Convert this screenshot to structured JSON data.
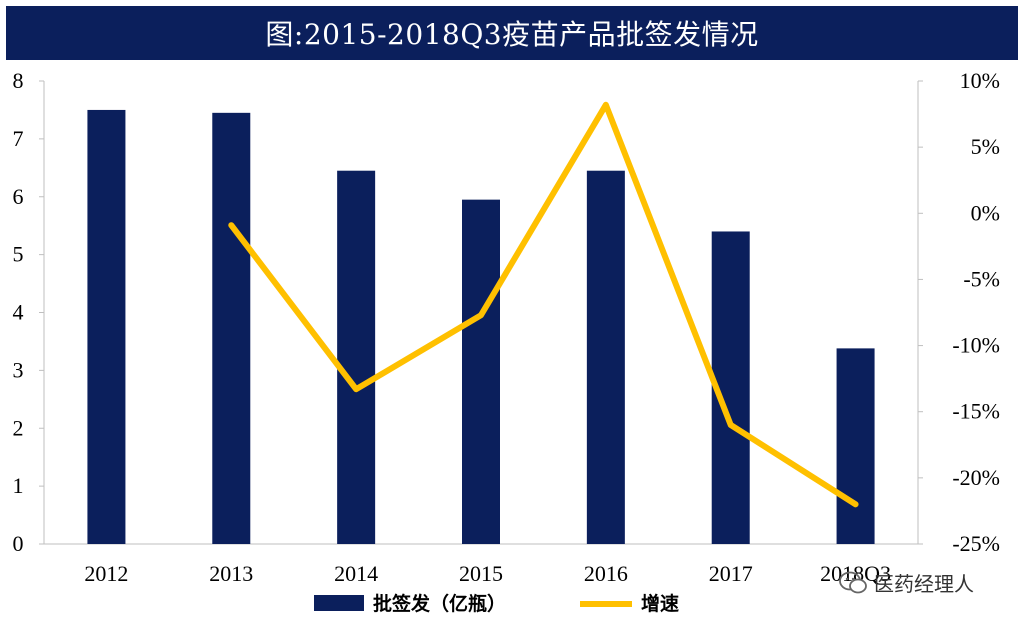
{
  "title": "图:2015-2018Q3疫苗产品批签发情况",
  "watermark": "医药经理人",
  "colors": {
    "bar": "#0b1f5c",
    "line": "#ffc000",
    "title_bg": "#0b1f5c"
  },
  "chart_data": {
    "type": "bar",
    "categories": [
      "2012",
      "2013",
      "2014",
      "2015",
      "2016",
      "2017",
      "2018Q3"
    ],
    "series": [
      {
        "name": "批签发（亿瓶）",
        "type": "bar",
        "axis": "left",
        "values": [
          7.5,
          7.45,
          6.45,
          5.95,
          6.45,
          5.4,
          3.38
        ]
      },
      {
        "name": "增速",
        "type": "line",
        "axis": "right",
        "values": [
          null,
          -0.9,
          -13.3,
          -7.7,
          8.2,
          -16.0,
          -22.0
        ]
      }
    ],
    "y_left": {
      "ylim": [
        0,
        8
      ],
      "ticks": [
        "0",
        "1",
        "2",
        "3",
        "4",
        "5",
        "6",
        "7",
        "8"
      ]
    },
    "y_right": {
      "ylim": [
        -25,
        10
      ],
      "ticks": [
        "-25%",
        "-20%",
        "-15%",
        "-10%",
        "-5%",
        "0%",
        "5%",
        "10%"
      ]
    },
    "legend": "bottom"
  }
}
